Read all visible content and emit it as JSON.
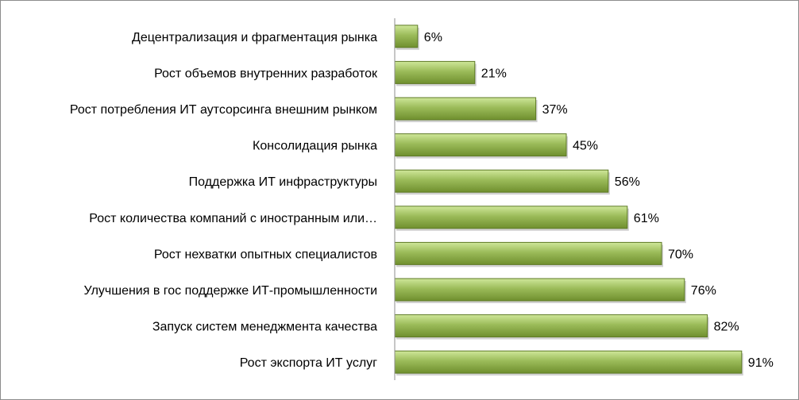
{
  "chart_data": {
    "type": "bar",
    "orientation": "horizontal",
    "title": "",
    "xlabel": "",
    "ylabel": "",
    "xlim": [
      0,
      100
    ],
    "grid": false,
    "legend": "none",
    "categories": [
      "Децентрализация и фрагментация рынка",
      "Рост объемов внутренних разработок",
      "Рост потребления ИТ аутсорсинга внешним рынком",
      "Консолидация рынка",
      "Поддержка ИТ инфраструктуры",
      "Рост количества компаний с иностранным или…",
      "Рост нехватки опытных специалистов",
      "Улучшения в гос поддержке ИТ-промышленности",
      "Запуск систем менеджмента  качества",
      "Рост экспорта ИТ услуг"
    ],
    "values": [
      6,
      21,
      37,
      45,
      56,
      61,
      70,
      76,
      82,
      91
    ],
    "value_labels": [
      "6%",
      "21%",
      "37%",
      "45%",
      "56%",
      "61%",
      "70%",
      "76%",
      "82%",
      "91%"
    ],
    "colors": {
      "bar_light": "#cfe79a",
      "bar_mid": "#9bbb59",
      "bar_dark": "#6f8f2e",
      "bar_border": "#5e7a26",
      "axis": "#8c8c8c"
    }
  }
}
